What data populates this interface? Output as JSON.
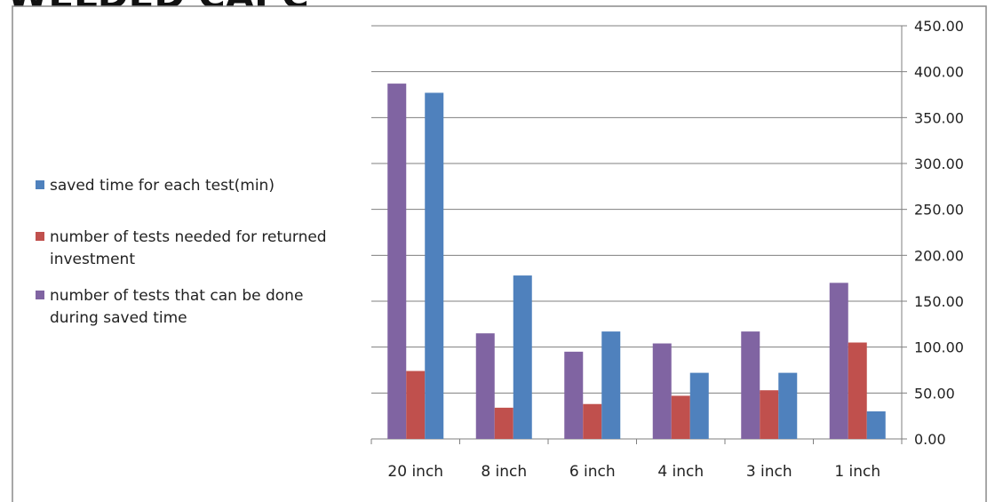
{
  "header": {
    "title_fragment": "WELDED CAPC"
  },
  "colors": {
    "purple": "#8064A2",
    "red": "#C0504D",
    "blue": "#4F81BD"
  },
  "chart_data": {
    "type": "bar",
    "categories": [
      "20 inch",
      "8 inch",
      "6 inch",
      "4 inch",
      "3 inch",
      "1 inch"
    ],
    "series": [
      {
        "name": "number of tests that can be done during saved time",
        "color": "#8064A2",
        "values": [
          387,
          115,
          95,
          104,
          117,
          170
        ]
      },
      {
        "name": "number of tests needed for returned investment",
        "color": "#C0504D",
        "values": [
          74,
          34,
          38,
          47,
          53,
          105
        ]
      },
      {
        "name": "saved time for each test(min)",
        "color": "#4F81BD",
        "values": [
          377,
          178,
          117,
          72,
          72,
          30
        ]
      }
    ],
    "yticks": [
      "0.00",
      "50.00",
      "100.00",
      "150.00",
      "200.00",
      "250.00",
      "300.00",
      "350.00",
      "400.00",
      "450.00"
    ],
    "ylim": [
      0,
      450
    ],
    "grid": true,
    "y_axis_side": "right",
    "legend": {
      "position": "left",
      "items": [
        {
          "lines": [
            "saved time for each test(min)"
          ],
          "color": "#4F81BD"
        },
        {
          "lines": [
            "number of tests needed for returned",
            "investment"
          ],
          "color": "#C0504D"
        },
        {
          "lines": [
            "number of tests that can be done",
            "during saved time"
          ],
          "color": "#8064A2"
        }
      ]
    }
  }
}
